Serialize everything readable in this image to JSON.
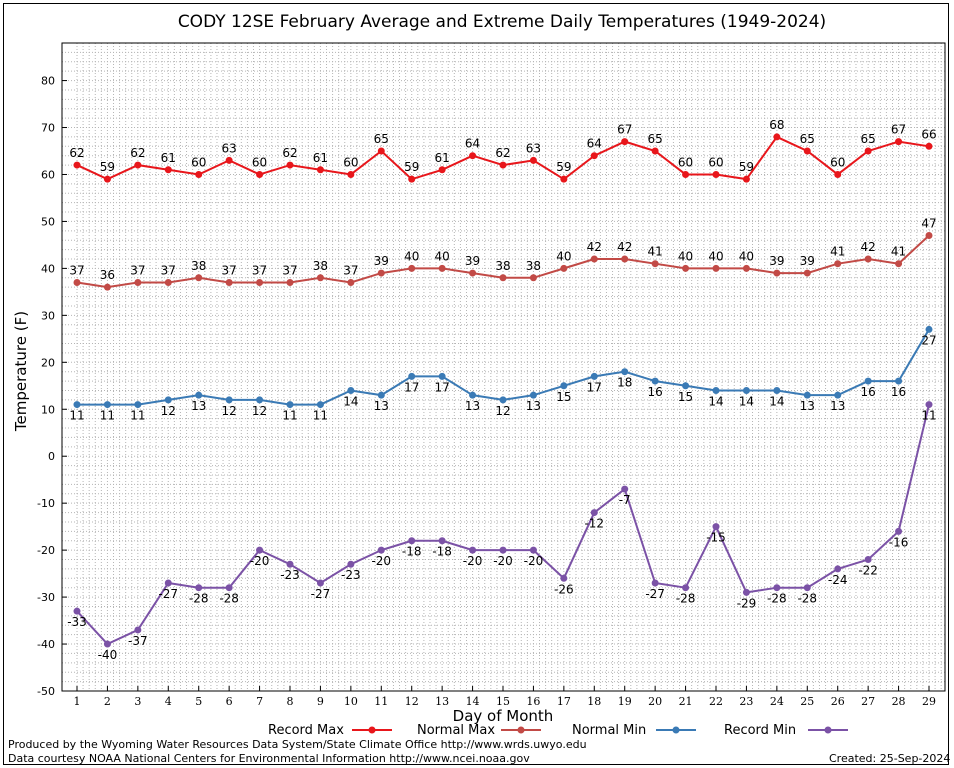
{
  "footer": {
    "produced_by": "Produced by the Wyoming Water Resources Data System/State Climate Office http://www.wrds.uwyo.edu",
    "courtesy": "Data courtesy NOAA National Centers for Environmental Information http://www.ncei.noaa.gov",
    "created": "Created: 25-Sep-2024"
  },
  "chart_data": {
    "type": "line",
    "title": "CODY 12SE February Average and Extreme Daily Temperatures (1949-2024)",
    "xlabel": "Day of Month",
    "ylabel": "Temperature (F)",
    "x": [
      1,
      2,
      3,
      4,
      5,
      6,
      7,
      8,
      9,
      10,
      11,
      12,
      13,
      14,
      15,
      16,
      17,
      18,
      19,
      20,
      21,
      22,
      23,
      24,
      25,
      26,
      27,
      28,
      29
    ],
    "ylim": [
      -50,
      88
    ],
    "yticks": [
      -50,
      -40,
      -30,
      -20,
      -10,
      0,
      10,
      20,
      30,
      40,
      50,
      60,
      70,
      80
    ],
    "grid": true,
    "legend_position": "bottom",
    "series": [
      {
        "name": "Record Max",
        "color": "#e8161b",
        "label_pos": "above",
        "values": [
          62,
          59,
          62,
          61,
          60,
          63,
          60,
          62,
          61,
          60,
          65,
          59,
          61,
          64,
          62,
          63,
          59,
          64,
          67,
          65,
          60,
          60,
          59,
          68,
          65,
          60,
          65,
          67,
          66
        ]
      },
      {
        "name": "Normal Max",
        "color": "#c24a46",
        "label_pos": "above",
        "values": [
          37,
          36,
          37,
          37,
          38,
          37,
          37,
          37,
          38,
          37,
          39,
          40,
          40,
          39,
          38,
          38,
          40,
          42,
          42,
          41,
          40,
          40,
          40,
          39,
          39,
          41,
          42,
          41,
          47
        ]
      },
      {
        "name": "Normal Min",
        "color": "#3a7ab5",
        "label_pos": "below",
        "values": [
          11,
          11,
          11,
          12,
          13,
          12,
          12,
          11,
          11,
          14,
          13,
          17,
          17,
          13,
          12,
          13,
          15,
          17,
          18,
          16,
          15,
          14,
          14,
          14,
          13,
          13,
          16,
          16,
          27
        ]
      },
      {
        "name": "Record Min",
        "color": "#7b52a6",
        "label_pos": "below",
        "values": [
          -33,
          -40,
          -37,
          -27,
          -28,
          -28,
          -20,
          -23,
          -27,
          -23,
          -20,
          -18,
          -18,
          -20,
          -20,
          -20,
          -26,
          -12,
          -7,
          -27,
          -28,
          -15,
          -29,
          -28,
          -28,
          -24,
          -22,
          -16,
          11
        ]
      }
    ]
  }
}
